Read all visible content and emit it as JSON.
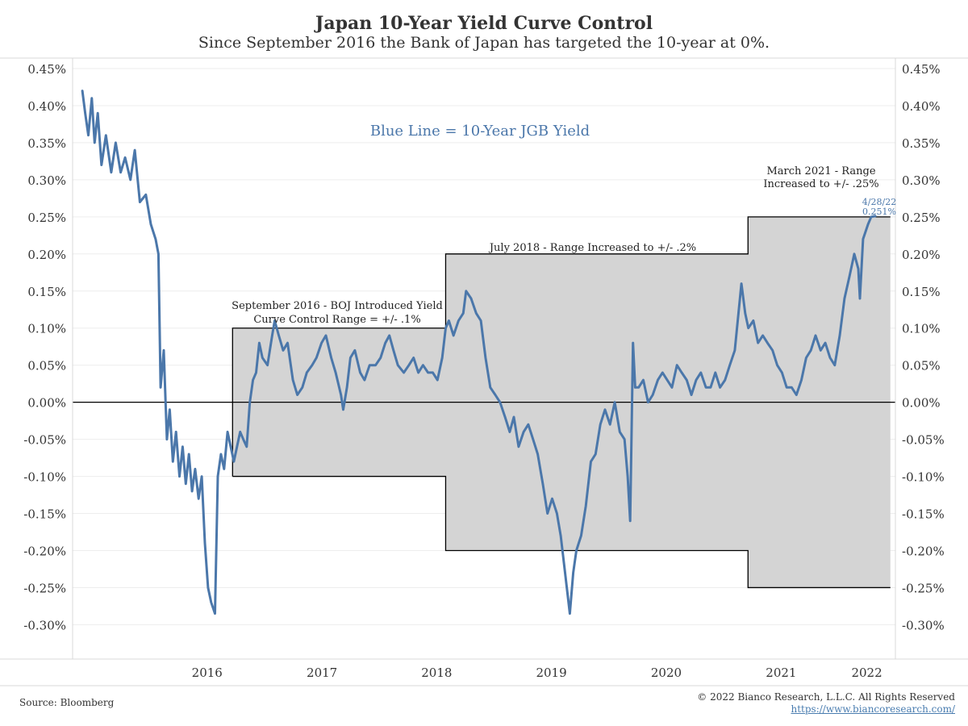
{
  "header": {
    "title": "Japan 10-Year Yield Curve Control",
    "subtitle": "Since September 2016 the Bank of Japan has targeted the 10-year at 0%."
  },
  "footer": {
    "source": "Source: Bloomberg",
    "copyright": "© 2022 Bianco Research, L.L.C. All Rights Reserved",
    "url": "https://www.biancoresearch.com/"
  },
  "colors": {
    "line": "#4b77aa",
    "band": "#d4d4d4",
    "grid": "#ededed",
    "axis": "#000000"
  },
  "chart_data": {
    "type": "line",
    "ylim": [
      -0.33,
      0.45
    ],
    "xlim": [
      "2015-05-01",
      "2022-07-01"
    ],
    "y_ticks": [
      0.45,
      0.4,
      0.35,
      0.3,
      0.25,
      0.2,
      0.15,
      0.1,
      0.05,
      0.0,
      -0.05,
      -0.1,
      -0.15,
      -0.2,
      -0.25,
      -0.3
    ],
    "y_tick_labels": [
      "0.45%",
      "0.40%",
      "0.35%",
      "0.30%",
      "0.25%",
      "0.20%",
      "0.15%",
      "0.10%",
      "0.05%",
      "0.00%",
      "-0.05%",
      "-0.10%",
      "-0.15%",
      "-0.20%",
      "-0.25%",
      "-0.30%"
    ],
    "x_tick_labels": [
      {
        "label": "2016",
        "date": "2016-01-01"
      },
      {
        "label": "2017",
        "date": "2017-01-01"
      },
      {
        "label": "2018",
        "date": "2018-01-01"
      },
      {
        "label": "2019",
        "date": "2019-01-01"
      },
      {
        "label": "2020",
        "date": "2020-01-01"
      },
      {
        "label": "2021",
        "date": "2021-01-01"
      },
      {
        "label": "2022",
        "date": "2022-01-01"
      }
    ],
    "grid": true,
    "series": [
      {
        "name": "10-Year JGB Yield",
        "points": [
          [
            "2015-06-01",
            0.42
          ],
          [
            "2015-06-10",
            0.39
          ],
          [
            "2015-06-20",
            0.36
          ],
          [
            "2015-07-01",
            0.41
          ],
          [
            "2015-07-10",
            0.35
          ],
          [
            "2015-07-20",
            0.39
          ],
          [
            "2015-08-01",
            0.32
          ],
          [
            "2015-08-15",
            0.36
          ],
          [
            "2015-09-01",
            0.31
          ],
          [
            "2015-09-15",
            0.35
          ],
          [
            "2015-10-01",
            0.31
          ],
          [
            "2015-10-15",
            0.33
          ],
          [
            "2015-11-01",
            0.3
          ],
          [
            "2015-11-15",
            0.34
          ],
          [
            "2015-12-01",
            0.27
          ],
          [
            "2015-12-20",
            0.28
          ],
          [
            "2016-01-05",
            0.24
          ],
          [
            "2016-01-20",
            0.22
          ],
          [
            "2016-01-29",
            0.2
          ],
          [
            "2016-02-05",
            0.02
          ],
          [
            "2016-02-15",
            0.07
          ],
          [
            "2016-02-25",
            -0.05
          ],
          [
            "2016-03-05",
            -0.01
          ],
          [
            "2016-03-15",
            -0.08
          ],
          [
            "2016-03-25",
            -0.04
          ],
          [
            "2016-04-05",
            -0.1
          ],
          [
            "2016-04-15",
            -0.06
          ],
          [
            "2016-04-25",
            -0.11
          ],
          [
            "2016-05-05",
            -0.07
          ],
          [
            "2016-05-15",
            -0.12
          ],
          [
            "2016-05-25",
            -0.09
          ],
          [
            "2016-06-05",
            -0.13
          ],
          [
            "2016-06-15",
            -0.1
          ],
          [
            "2016-06-25",
            -0.19
          ],
          [
            "2016-07-05",
            -0.25
          ],
          [
            "2016-07-15",
            -0.27
          ],
          [
            "2016-07-27",
            -0.285
          ],
          [
            "2016-08-05",
            -0.1
          ],
          [
            "2016-08-15",
            -0.07
          ],
          [
            "2016-08-25",
            -0.09
          ],
          [
            "2016-09-05",
            -0.04
          ],
          [
            "2016-09-15",
            -0.06
          ],
          [
            "2016-09-25",
            -0.08
          ],
          [
            "2016-10-05",
            -0.06
          ],
          [
            "2016-10-15",
            -0.04
          ],
          [
            "2016-10-25",
            -0.05
          ],
          [
            "2016-11-05",
            -0.06
          ],
          [
            "2016-11-15",
            0.0
          ],
          [
            "2016-11-25",
            0.03
          ],
          [
            "2016-12-05",
            0.04
          ],
          [
            "2016-12-15",
            0.08
          ],
          [
            "2016-12-25",
            0.06
          ],
          [
            "2017-01-10",
            0.05
          ],
          [
            "2017-01-25",
            0.09
          ],
          [
            "2017-02-02",
            0.11
          ],
          [
            "2017-02-15",
            0.09
          ],
          [
            "2017-03-01",
            0.07
          ],
          [
            "2017-03-15",
            0.08
          ],
          [
            "2017-04-01",
            0.03
          ],
          [
            "2017-04-15",
            0.01
          ],
          [
            "2017-05-01",
            0.02
          ],
          [
            "2017-05-15",
            0.04
          ],
          [
            "2017-06-01",
            0.05
          ],
          [
            "2017-06-15",
            0.06
          ],
          [
            "2017-07-01",
            0.08
          ],
          [
            "2017-07-15",
            0.09
          ],
          [
            "2017-08-01",
            0.06
          ],
          [
            "2017-08-15",
            0.04
          ],
          [
            "2017-09-01",
            0.01
          ],
          [
            "2017-09-08",
            -0.01
          ],
          [
            "2017-09-20",
            0.02
          ],
          [
            "2017-10-01",
            0.06
          ],
          [
            "2017-10-15",
            0.07
          ],
          [
            "2017-11-01",
            0.04
          ],
          [
            "2017-11-15",
            0.03
          ],
          [
            "2017-12-01",
            0.05
          ],
          [
            "2017-12-20",
            0.05
          ],
          [
            "2018-01-05",
            0.06
          ],
          [
            "2018-01-20",
            0.08
          ],
          [
            "2018-02-02",
            0.09
          ],
          [
            "2018-02-15",
            0.07
          ],
          [
            "2018-03-01",
            0.05
          ],
          [
            "2018-03-20",
            0.04
          ],
          [
            "2018-04-05",
            0.05
          ],
          [
            "2018-04-20",
            0.06
          ],
          [
            "2018-05-05",
            0.04
          ],
          [
            "2018-05-20",
            0.05
          ],
          [
            "2018-06-05",
            0.04
          ],
          [
            "2018-06-20",
            0.04
          ],
          [
            "2018-07-05",
            0.03
          ],
          [
            "2018-07-20",
            0.06
          ],
          [
            "2018-07-31",
            0.1
          ],
          [
            "2018-08-10",
            0.11
          ],
          [
            "2018-08-25",
            0.09
          ],
          [
            "2018-09-10",
            0.11
          ],
          [
            "2018-09-25",
            0.12
          ],
          [
            "2018-10-04",
            0.15
          ],
          [
            "2018-10-20",
            0.14
          ],
          [
            "2018-11-05",
            0.12
          ],
          [
            "2018-11-20",
            0.11
          ],
          [
            "2018-12-05",
            0.06
          ],
          [
            "2018-12-20",
            0.02
          ],
          [
            "2019-01-05",
            0.01
          ],
          [
            "2019-01-20",
            0.0
          ],
          [
            "2019-02-05",
            -0.02
          ],
          [
            "2019-02-20",
            -0.04
          ],
          [
            "2019-03-05",
            -0.02
          ],
          [
            "2019-03-20",
            -0.06
          ],
          [
            "2019-04-05",
            -0.04
          ],
          [
            "2019-04-20",
            -0.03
          ],
          [
            "2019-05-05",
            -0.05
          ],
          [
            "2019-05-20",
            -0.07
          ],
          [
            "2019-06-05",
            -0.11
          ],
          [
            "2019-06-20",
            -0.15
          ],
          [
            "2019-07-05",
            -0.13
          ],
          [
            "2019-07-20",
            -0.15
          ],
          [
            "2019-08-01",
            -0.18
          ],
          [
            "2019-08-15",
            -0.23
          ],
          [
            "2019-08-30",
            -0.285
          ],
          [
            "2019-09-10",
            -0.23
          ],
          [
            "2019-09-20",
            -0.2
          ],
          [
            "2019-10-05",
            -0.18
          ],
          [
            "2019-10-20",
            -0.14
          ],
          [
            "2019-11-05",
            -0.08
          ],
          [
            "2019-11-20",
            -0.07
          ],
          [
            "2019-12-05",
            -0.03
          ],
          [
            "2019-12-20",
            -0.01
          ],
          [
            "2020-01-05",
            -0.03
          ],
          [
            "2020-01-20",
            0.0
          ],
          [
            "2020-02-05",
            -0.04
          ],
          [
            "2020-02-20",
            -0.05
          ],
          [
            "2020-03-01",
            -0.1
          ],
          [
            "2020-03-09",
            -0.16
          ],
          [
            "2020-03-18",
            0.08
          ],
          [
            "2020-03-25",
            0.02
          ],
          [
            "2020-04-05",
            0.02
          ],
          [
            "2020-04-20",
            0.03
          ],
          [
            "2020-05-05",
            0.0
          ],
          [
            "2020-05-20",
            0.01
          ],
          [
            "2020-06-05",
            0.03
          ],
          [
            "2020-06-20",
            0.04
          ],
          [
            "2020-07-05",
            0.03
          ],
          [
            "2020-07-20",
            0.02
          ],
          [
            "2020-08-05",
            0.05
          ],
          [
            "2020-08-20",
            0.04
          ],
          [
            "2020-09-05",
            0.03
          ],
          [
            "2020-09-20",
            0.01
          ],
          [
            "2020-10-05",
            0.03
          ],
          [
            "2020-10-20",
            0.04
          ],
          [
            "2020-11-05",
            0.02
          ],
          [
            "2020-11-20",
            0.02
          ],
          [
            "2020-12-05",
            0.04
          ],
          [
            "2020-12-20",
            0.02
          ],
          [
            "2021-01-05",
            0.03
          ],
          [
            "2021-01-20",
            0.05
          ],
          [
            "2021-02-05",
            0.07
          ],
          [
            "2021-02-26",
            0.16
          ],
          [
            "2021-03-10",
            0.12
          ],
          [
            "2021-03-20",
            0.1
          ],
          [
            "2021-04-05",
            0.11
          ],
          [
            "2021-04-20",
            0.08
          ],
          [
            "2021-05-05",
            0.09
          ],
          [
            "2021-05-20",
            0.08
          ],
          [
            "2021-06-05",
            0.07
          ],
          [
            "2021-06-20",
            0.05
          ],
          [
            "2021-07-05",
            0.04
          ],
          [
            "2021-07-20",
            0.02
          ],
          [
            "2021-08-05",
            0.02
          ],
          [
            "2021-08-20",
            0.01
          ],
          [
            "2021-09-05",
            0.03
          ],
          [
            "2021-09-20",
            0.06
          ],
          [
            "2021-10-05",
            0.07
          ],
          [
            "2021-10-20",
            0.09
          ],
          [
            "2021-11-05",
            0.07
          ],
          [
            "2021-11-20",
            0.08
          ],
          [
            "2021-12-05",
            0.06
          ],
          [
            "2021-12-20",
            0.05
          ],
          [
            "2022-01-05",
            0.09
          ],
          [
            "2022-01-20",
            0.14
          ],
          [
            "2022-02-05",
            0.17
          ],
          [
            "2022-02-20",
            0.2
          ],
          [
            "2022-03-05",
            0.18
          ],
          [
            "2022-03-10",
            0.14
          ],
          [
            "2022-03-20",
            0.22
          ],
          [
            "2022-04-05",
            0.24
          ],
          [
            "2022-04-15",
            0.25
          ],
          [
            "2022-04-28",
            0.251
          ]
        ]
      }
    ],
    "band": [
      {
        "start": "2016-09-21",
        "end": "2018-07-31",
        "low": -0.1,
        "high": 0.1
      },
      {
        "start": "2018-07-31",
        "end": "2021-03-19",
        "low": -0.2,
        "high": 0.2
      },
      {
        "start": "2021-03-19",
        "end": "2022-06-15",
        "low": -0.25,
        "high": 0.25
      }
    ],
    "reference_line": 0.0,
    "annotations": {
      "legend_note": "Blue Line = 10-Year JGB Yield",
      "sep2016": [
        "September 2016 - BOJ Introduced Yield",
        "Curve Control Range = +/- .1%"
      ],
      "jul2018": "July 2018 - Range Increased to +/- .2%",
      "mar2021": [
        "March 2021 - Range",
        "Increased to +/- .25%"
      ],
      "last_date": "4/28/22",
      "last_value": "0.251%"
    }
  }
}
